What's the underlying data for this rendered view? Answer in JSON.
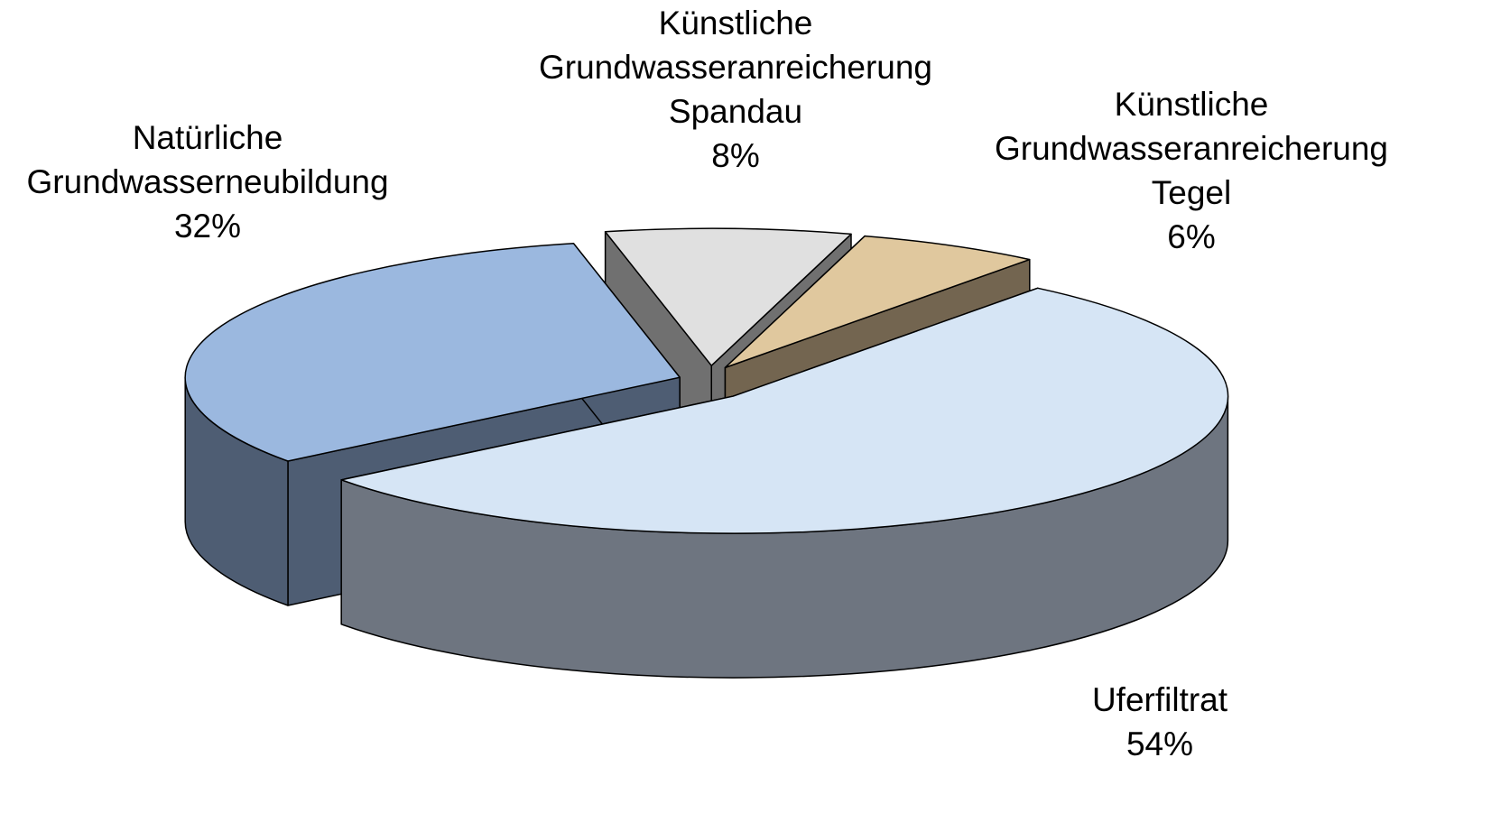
{
  "chart_data": {
    "type": "pie",
    "categories": [
      "Künstliche Grundwasseranreicherung Spandau",
      "Künstliche Grundwasseranreicherung Tegel",
      "Uferfiltrat",
      "Natürliche Grundwasserneubildung"
    ],
    "values": [
      8,
      6,
      54,
      32
    ],
    "value_labels": [
      "8%",
      "6%",
      "54%",
      "32%"
    ],
    "colors": [
      "#e0e0e0",
      "#e0c89e",
      "#d6e5f5",
      "#9bb8df"
    ],
    "side_colors": [
      "#707070",
      "#736550",
      "#6e7580",
      "#4e5d73"
    ]
  }
}
